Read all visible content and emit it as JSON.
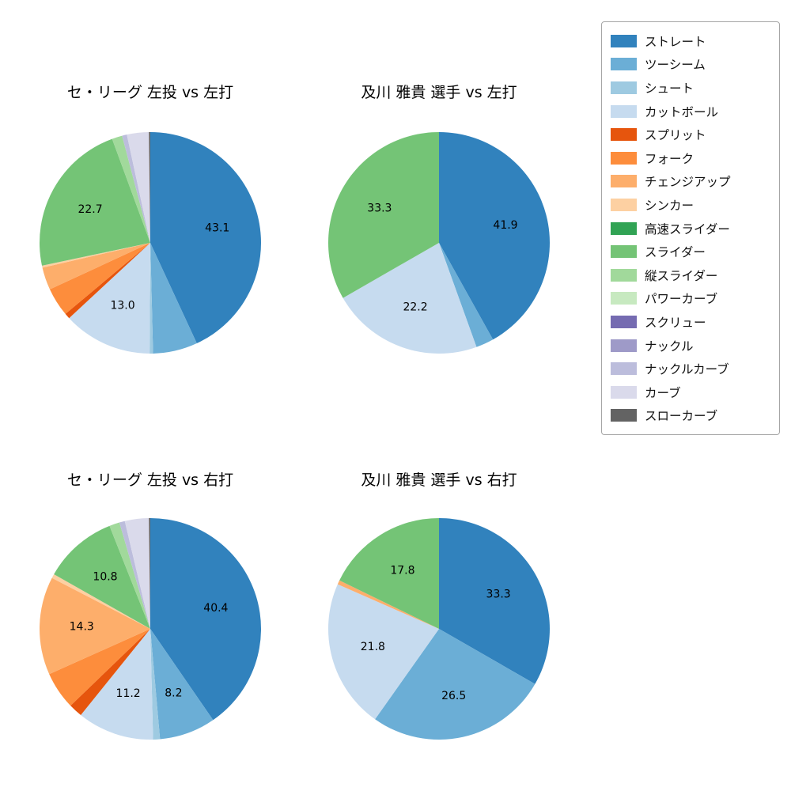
{
  "palette": {
    "ストレート": "#3182bd",
    "ツーシーム": "#6baed6",
    "シュート": "#9ecae1",
    "カットボール": "#c6dbef",
    "スプリット": "#e6550d",
    "フォーク": "#fd8d3c",
    "チェンジアップ": "#fdae6b",
    "シンカー": "#fdd0a2",
    "高速スライダー": "#31a354",
    "スライダー": "#74c476",
    "縦スライダー": "#a1d99b",
    "パワーカーブ": "#c7e9c0",
    "スクリュー": "#756bb1",
    "ナックル": "#9e9ac8",
    "ナックルカーブ": "#bcbddc",
    "カーブ": "#dadaeb",
    "スローカーブ": "#636363"
  },
  "legend": {
    "position": "upper right",
    "labels": [
      "ストレート",
      "ツーシーム",
      "シュート",
      "カットボール",
      "スプリット",
      "フォーク",
      "チェンジアップ",
      "シンカー",
      "高速スライダー",
      "スライダー",
      "縦スライダー",
      "パワーカーブ",
      "スクリュー",
      "ナックル",
      "ナックルカーブ",
      "カーブ",
      "スローカーブ"
    ]
  },
  "chart_data": [
    {
      "type": "pie",
      "title": "セ・リーグ 左投 vs 左打",
      "start_angle": "12-oclock",
      "direction": "clockwise",
      "slices": [
        {
          "name": "ストレート",
          "value": 43.1,
          "label": "43.1"
        },
        {
          "name": "ツーシーム",
          "value": 6.5,
          "label": null
        },
        {
          "name": "シュート",
          "value": 0.5,
          "label": null
        },
        {
          "name": "カットボール",
          "value": 13.0,
          "label": "13.0"
        },
        {
          "name": "スプリット",
          "value": 0.8,
          "label": null
        },
        {
          "name": "フォーク",
          "value": 4.2,
          "label": null
        },
        {
          "name": "チェンジアップ",
          "value": 3.3,
          "label": null
        },
        {
          "name": "シンカー",
          "value": 0.3,
          "label": null
        },
        {
          "name": "スライダー",
          "value": 22.7,
          "label": "22.7"
        },
        {
          "name": "縦スライダー",
          "value": 1.5,
          "label": null
        },
        {
          "name": "ナックルカーブ",
          "value": 0.7,
          "label": null
        },
        {
          "name": "カーブ",
          "value": 3.2,
          "label": null
        },
        {
          "name": "スローカーブ",
          "value": 0.2,
          "label": null
        }
      ]
    },
    {
      "type": "pie",
      "title": "及川 雅貴 選手 vs 左打",
      "start_angle": "12-oclock",
      "direction": "clockwise",
      "slices": [
        {
          "name": "ストレート",
          "value": 41.9,
          "label": "41.9"
        },
        {
          "name": "ツーシーム",
          "value": 2.6,
          "label": null
        },
        {
          "name": "カットボール",
          "value": 22.2,
          "label": "22.2"
        },
        {
          "name": "スライダー",
          "value": 33.3,
          "label": "33.3"
        }
      ]
    },
    {
      "type": "pie",
      "title": "セ・リーグ 左投 vs 右打",
      "start_angle": "12-oclock",
      "direction": "clockwise",
      "slices": [
        {
          "name": "ストレート",
          "value": 40.4,
          "label": "40.4"
        },
        {
          "name": "ツーシーム",
          "value": 8.2,
          "label": "8.2"
        },
        {
          "name": "シュート",
          "value": 1.0,
          "label": null
        },
        {
          "name": "カットボール",
          "value": 11.2,
          "label": "11.2"
        },
        {
          "name": "スプリット",
          "value": 2.0,
          "label": null
        },
        {
          "name": "フォーク",
          "value": 5.5,
          "label": null
        },
        {
          "name": "チェンジアップ",
          "value": 14.3,
          "label": "14.3"
        },
        {
          "name": "シンカー",
          "value": 0.6,
          "label": null
        },
        {
          "name": "スライダー",
          "value": 10.8,
          "label": "10.8"
        },
        {
          "name": "縦スライダー",
          "value": 1.5,
          "label": null
        },
        {
          "name": "ナックルカーブ",
          "value": 0.8,
          "label": null
        },
        {
          "name": "カーブ",
          "value": 3.5,
          "label": null
        },
        {
          "name": "スローカーブ",
          "value": 0.2,
          "label": null
        }
      ]
    },
    {
      "type": "pie",
      "title": "及川 雅貴 選手 vs 右打",
      "start_angle": "12-oclock",
      "direction": "clockwise",
      "slices": [
        {
          "name": "ストレート",
          "value": 33.3,
          "label": "33.3"
        },
        {
          "name": "ツーシーム",
          "value": 26.5,
          "label": "26.5"
        },
        {
          "name": "カットボール",
          "value": 21.8,
          "label": "21.8"
        },
        {
          "name": "チェンジアップ",
          "value": 0.6,
          "label": null
        },
        {
          "name": "スライダー",
          "value": 17.8,
          "label": "17.8"
        }
      ]
    }
  ]
}
